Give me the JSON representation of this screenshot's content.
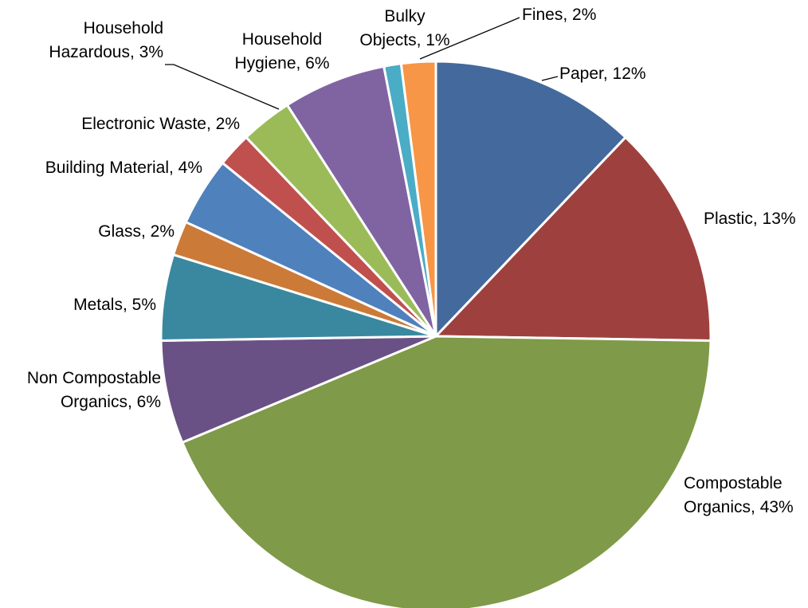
{
  "chart_data": {
    "type": "pie",
    "title": "",
    "start_angle_deg": 0,
    "direction": "clockwise",
    "slices": [
      {
        "name": "Paper",
        "value": 12,
        "color": "#44699C",
        "label_lines": [
          "Paper, 12%"
        ]
      },
      {
        "name": "Plastic",
        "value": 13,
        "color": "#9E413E",
        "label_lines": [
          "Plastic, 13%"
        ]
      },
      {
        "name": "Compostable Organics",
        "value": 43,
        "color": "#7F9A48",
        "label_lines": [
          "Compostable",
          "Organics, 43%"
        ]
      },
      {
        "name": "Non Compostable Organics",
        "value": 6,
        "color": "#695185",
        "label_lines": [
          "Non Compostable",
          "Organics, 6%"
        ]
      },
      {
        "name": "Metals",
        "value": 5,
        "color": "#3A889F",
        "label_lines": [
          "Metals, 5%"
        ]
      },
      {
        "name": "Glass",
        "value": 2,
        "color": "#CC7A38",
        "label_lines": [
          "Glass, 2%"
        ]
      },
      {
        "name": "Building Material",
        "value": 4,
        "color": "#4F81BD",
        "label_lines": [
          "Building Material, 4%"
        ]
      },
      {
        "name": "Electronic Waste",
        "value": 2,
        "color": "#C0504D",
        "label_lines": [
          "Electronic Waste, 2%"
        ]
      },
      {
        "name": "Household Hazardous",
        "value": 3,
        "color": "#9BBB59",
        "label_lines": [
          "Household",
          "Hazardous, 3%"
        ]
      },
      {
        "name": "Household Hygiene",
        "value": 6,
        "color": "#8064A2",
        "label_lines": [
          "Household",
          "Hygiene, 6%"
        ]
      },
      {
        "name": "Bulky Objects",
        "value": 1,
        "color": "#4BACC6",
        "label_lines": [
          "Bulky",
          "Objects, 1%"
        ]
      },
      {
        "name": "Fines",
        "value": 2,
        "color": "#F79646",
        "label_lines": [
          "Fines, 2%"
        ]
      }
    ]
  }
}
